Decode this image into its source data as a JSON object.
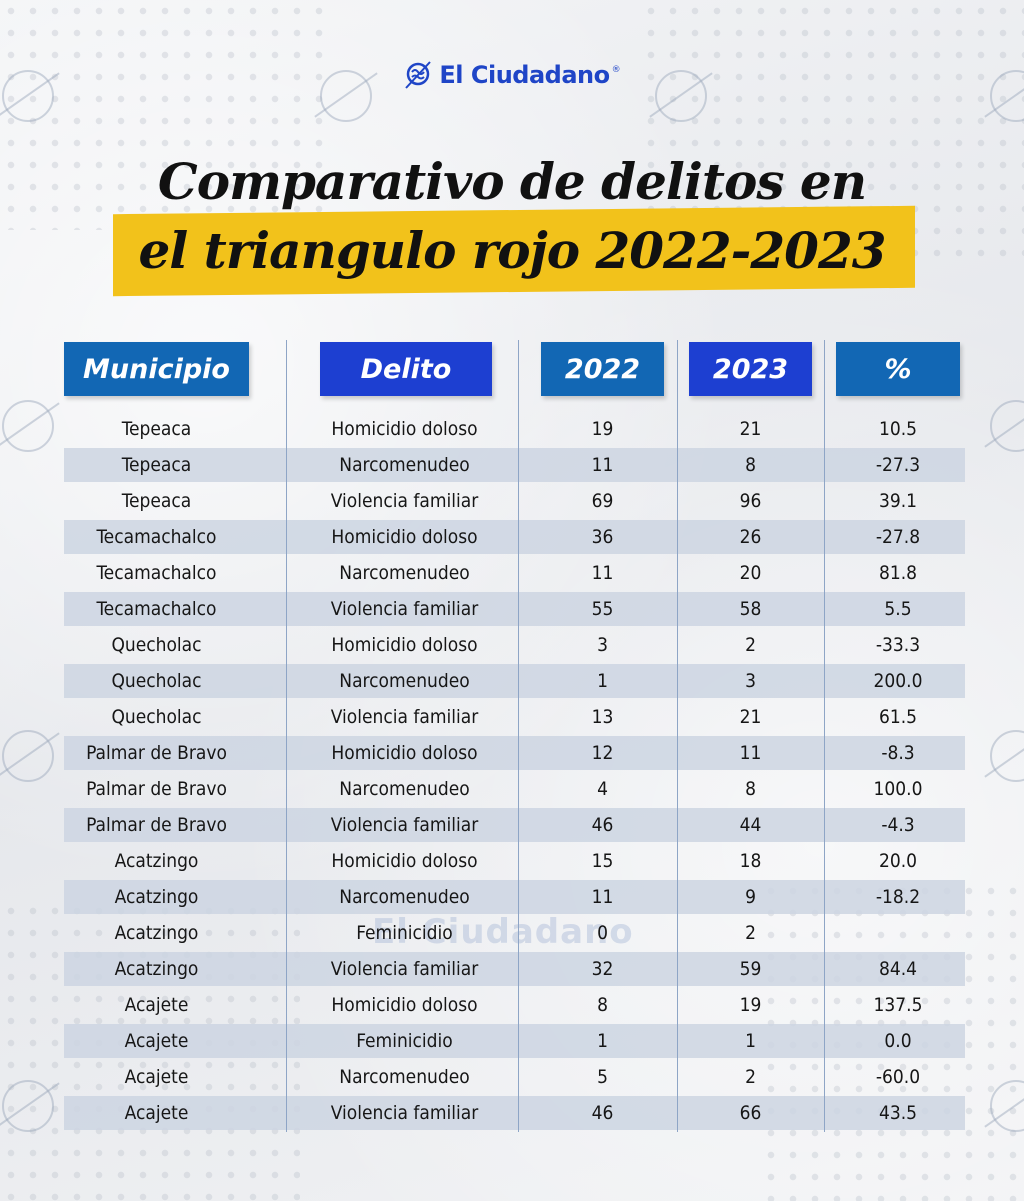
{
  "brand": {
    "logo_text": "El Ciudadano",
    "registered": "®",
    "watermark": "El Ciudadano"
  },
  "title": {
    "line1": "Comparativo de delitos en",
    "line2": "el triangulo rojo 2022-2023"
  },
  "colors": {
    "header_blue": "#1267b4",
    "header_royal": "#1d3fd1",
    "highlight_yellow": "#f2c21b",
    "logo_blue": "#1f45c7"
  },
  "chart_data": {
    "type": "table",
    "columns": [
      "Municipio",
      "Delito",
      "2022",
      "2023",
      "%"
    ],
    "rows": [
      {
        "municipio": "Tepeaca",
        "delito": "Homicidio doloso",
        "y2022": "19",
        "y2023": "21",
        "pct": "10.5"
      },
      {
        "municipio": "Tepeaca",
        "delito": "Narcomenudeo",
        "y2022": "11",
        "y2023": "8",
        "pct": "-27.3"
      },
      {
        "municipio": "Tepeaca",
        "delito": "Violencia familiar",
        "y2022": "69",
        "y2023": "96",
        "pct": "39.1"
      },
      {
        "municipio": "Tecamachalco",
        "delito": "Homicidio doloso",
        "y2022": "36",
        "y2023": "26",
        "pct": "-27.8"
      },
      {
        "municipio": "Tecamachalco",
        "delito": "Narcomenudeo",
        "y2022": "11",
        "y2023": "20",
        "pct": "81.8"
      },
      {
        "municipio": "Tecamachalco",
        "delito": "Violencia familiar",
        "y2022": "55",
        "y2023": "58",
        "pct": "5.5"
      },
      {
        "municipio": "Quecholac",
        "delito": "Homicidio doloso",
        "y2022": "3",
        "y2023": "2",
        "pct": "-33.3"
      },
      {
        "municipio": "Quecholac",
        "delito": "Narcomenudeo",
        "y2022": "1",
        "y2023": "3",
        "pct": "200.0"
      },
      {
        "municipio": "Quecholac",
        "delito": "Violencia familiar",
        "y2022": "13",
        "y2023": "21",
        "pct": "61.5"
      },
      {
        "municipio": "Palmar de Bravo",
        "delito": "Homicidio doloso",
        "y2022": "12",
        "y2023": "11",
        "pct": "-8.3"
      },
      {
        "municipio": "Palmar de Bravo",
        "delito": "Narcomenudeo",
        "y2022": "4",
        "y2023": "8",
        "pct": "100.0"
      },
      {
        "municipio": "Palmar de Bravo",
        "delito": "Violencia familiar",
        "y2022": "46",
        "y2023": "44",
        "pct": "-4.3"
      },
      {
        "municipio": "Acatzingo",
        "delito": "Homicidio doloso",
        "y2022": "15",
        "y2023": "18",
        "pct": "20.0"
      },
      {
        "municipio": "Acatzingo",
        "delito": "Narcomenudeo",
        "y2022": "11",
        "y2023": "9",
        "pct": "-18.2"
      },
      {
        "municipio": "Acatzingo",
        "delito": "Feminicidio",
        "y2022": "0",
        "y2023": "2",
        "pct": ""
      },
      {
        "municipio": "Acatzingo",
        "delito": "Violencia familiar",
        "y2022": "32",
        "y2023": "59",
        "pct": "84.4"
      },
      {
        "municipio": "Acajete",
        "delito": "Homicidio doloso",
        "y2022": "8",
        "y2023": "19",
        "pct": "137.5"
      },
      {
        "municipio": "Acajete",
        "delito": "Feminicidio",
        "y2022": "1",
        "y2023": "1",
        "pct": "0.0"
      },
      {
        "municipio": "Acajete",
        "delito": "Narcomenudeo",
        "y2022": "5",
        "y2023": "2",
        "pct": "-60.0"
      },
      {
        "municipio": "Acajete",
        "delito": "Violencia familiar",
        "y2022": "46",
        "y2023": "66",
        "pct": "43.5"
      }
    ]
  }
}
